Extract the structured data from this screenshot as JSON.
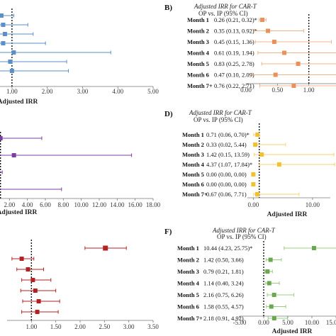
{
  "chart_data": [
    {
      "type": "forest",
      "panel_label": "",
      "header": [],
      "xlabel": "Adjusted IRR",
      "x_ticks": [
        "1.00",
        "2.00",
        "3.00",
        "4.00",
        "5.00"
      ],
      "xlim": [
        0.5,
        5.0
      ],
      "reference_line": 1.0,
      "color": "#5b8fc7",
      "rows": [
        {
          "label": "",
          "value_text": "",
          "est": 0.7,
          "lo": 0.3,
          "hi": 1.05
        },
        {
          "label": "",
          "value_text": "",
          "est": 0.75,
          "lo": 0.4,
          "hi": 1.45
        },
        {
          "label": "",
          "value_text": "",
          "est": 0.8,
          "lo": 0.4,
          "hi": 1.6
        },
        {
          "label": "",
          "value_text": "",
          "est": 0.75,
          "lo": 0.35,
          "hi": 1.95
        },
        {
          "label": "",
          "value_text": "",
          "est": 1.05,
          "lo": 0.45,
          "hi": 3.8
        },
        {
          "label": "",
          "value_text": "",
          "est": 0.95,
          "lo": 0.45,
          "hi": 2.55
        },
        {
          "label": "",
          "value_text": "",
          "est": 1.0,
          "lo": 0.5,
          "hi": 2.6
        }
      ]
    },
    {
      "type": "forest",
      "panel_label": "B)",
      "header": [
        "Adjusted IRR for CAR-T",
        "OP vs. IP (95% CI)"
      ],
      "xlabel": "",
      "x_ticks": [
        "0.00",
        "0.50",
        "1.00",
        "1.5"
      ],
      "xlim": [
        0.0,
        1.5
      ],
      "reference_line": 1.0,
      "color": "#e8915a",
      "rows": [
        {
          "label": "Month 1",
          "value_text": "0.26 (0.21, 0.32)*",
          "est": 0.26,
          "lo": 0.21,
          "hi": 0.32
        },
        {
          "label": "Month 2",
          "value_text": "0.35 (0.13, 0.92)*",
          "est": 0.35,
          "lo": 0.13,
          "hi": 0.92
        },
        {
          "label": "Month 3",
          "value_text": "0.45 (0.15, 1.36)",
          "est": 0.45,
          "lo": 0.15,
          "hi": 1.36
        },
        {
          "label": "Month 4",
          "value_text": "0.61 (0.19, 1.94)",
          "est": 0.61,
          "lo": 0.19,
          "hi": 1.94
        },
        {
          "label": "Month 5",
          "value_text": "0.83 (0.25, 2.78)",
          "est": 0.83,
          "lo": 0.25,
          "hi": 2.78
        },
        {
          "label": "Month 6",
          "value_text": "0.47 (0.10, 2.09)",
          "est": 0.47,
          "lo": 0.1,
          "hi": 2.09
        },
        {
          "label": "Month 7+",
          "value_text": "0.76 (0.22, 2.71)",
          "est": 0.76,
          "lo": 0.22,
          "hi": 2.71
        }
      ]
    },
    {
      "type": "forest",
      "panel_label": "",
      "header": [],
      "xlabel": "Adjusted IRR",
      "x_ticks": [
        "2.00",
        "4.00",
        "6.00",
        "8.00",
        "10.00",
        "12.00",
        "14.00",
        "16.00",
        "18.00"
      ],
      "xlim": [
        0.0,
        18.0
      ],
      "reference_line": 1.0,
      "color": "#7b3fa0",
      "rows": [
        {
          "label": "",
          "value_text": "",
          "est": 1.0,
          "lo": 0.2,
          "hi": 5.6
        },
        {
          "label": "",
          "value_text": "",
          "est": 2.5,
          "lo": 0.2,
          "hi": 15.6
        },
        {
          "label": "",
          "value_text": "",
          "est": 0.3,
          "lo": 0.1,
          "hi": 1.2
        },
        {
          "label": "",
          "value_text": "",
          "est": 0.5,
          "lo": 0.1,
          "hi": 7.8
        }
      ]
    },
    {
      "type": "forest",
      "panel_label": "D)",
      "header": [
        "Adjusted IRR for CAR-T",
        "OP vs. IP (95% CI)"
      ],
      "xlabel": "Adjusted IRR",
      "x_ticks": [
        "0.00",
        "10.00"
      ],
      "xlim": [
        -1.0,
        13.0
      ],
      "reference_line": 1.0,
      "color": "#f2c12e",
      "rows": [
        {
          "label": "Month 1",
          "value_text": "0.71 (0.06, 0.70)*",
          "est": 0.71,
          "lo": 0.06,
          "hi": 0.7
        },
        {
          "label": "Month 2",
          "value_text": "0.33 (0.02, 5.44)",
          "est": 0.33,
          "lo": 0.02,
          "hi": 5.44
        },
        {
          "label": "Month 3",
          "value_text": "1.42 (0.15, 13.59)",
          "est": 1.42,
          "lo": 0.15,
          "hi": 13.59
        },
        {
          "label": "Month 4",
          "value_text": "4.37 (1.07, 17.84)*",
          "est": 4.37,
          "lo": 1.07,
          "hi": 17.84
        },
        {
          "label": "Month 5",
          "value_text": "0.00 (0.00, 0.00)",
          "est": 0.0,
          "lo": 0.0,
          "hi": 0.0
        },
        {
          "label": "Month 6",
          "value_text": "0.00 (0.00, 0.00)",
          "est": 0.0,
          "lo": 0.0,
          "hi": 0.0
        },
        {
          "label": "Month 7+",
          "value_text": "0.67 (0.06, 7.71)",
          "est": 0.67,
          "lo": 0.06,
          "hi": 7.71
        }
      ]
    },
    {
      "type": "forest",
      "panel_label": "",
      "header": [],
      "xlabel": "",
      "x_ticks": [
        "1.00",
        "1.50",
        "2.00",
        "2.50",
        "3.00",
        "3.50"
      ],
      "xlim": [
        0.5,
        3.5
      ],
      "reference_line": 1.0,
      "color": "#b22222",
      "rows": [
        {
          "label": "",
          "value_text": "",
          "est": 2.52,
          "lo": 2.1,
          "hi": 2.95
        },
        {
          "label": "",
          "value_text": "",
          "est": 0.8,
          "lo": 0.6,
          "hi": 1.05
        },
        {
          "label": "",
          "value_text": "",
          "est": 0.93,
          "lo": 0.7,
          "hi": 1.25
        },
        {
          "label": "",
          "value_text": "",
          "est": 1.03,
          "lo": 0.8,
          "hi": 1.4
        },
        {
          "label": "",
          "value_text": "",
          "est": 1.08,
          "lo": 0.78,
          "hi": 1.5
        },
        {
          "label": "",
          "value_text": "",
          "est": 1.15,
          "lo": 0.82,
          "hi": 1.58
        },
        {
          "label": "",
          "value_text": "",
          "est": 1.12,
          "lo": 0.8,
          "hi": 1.55
        }
      ]
    },
    {
      "type": "forest",
      "panel_label": "F)",
      "header": [
        "Adjusted IRR for CAR-T",
        "OP vs. IP (95% CI)"
      ],
      "xlabel": "Adjusted IRR",
      "x_ticks": [
        "-5.00",
        "0.00",
        "5.00",
        "10.00",
        "15.00"
      ],
      "xlim": [
        -5.0,
        15.0
      ],
      "reference_line": 0.0,
      "color": "#6aa84f",
      "rows": [
        {
          "label": "Month 1",
          "value_text": "10.44 (4.23, 25.75)*",
          "est": 10.44,
          "lo": 4.23,
          "hi": 25.75
        },
        {
          "label": "Month 2",
          "value_text": "1.42 (0.50, 3.66)",
          "est": 1.42,
          "lo": 0.5,
          "hi": 3.66
        },
        {
          "label": "Month 3",
          "value_text": "0.79 (0.21, 1.81)",
          "est": 0.79,
          "lo": 0.21,
          "hi": 1.81
        },
        {
          "label": "Month 4",
          "value_text": "1.14 (0.40, 3.24)",
          "est": 1.14,
          "lo": 0.4,
          "hi": 3.24
        },
        {
          "label": "Month 5",
          "value_text": "2.16 (0.75, 6.26)",
          "est": 2.16,
          "lo": 0.75,
          "hi": 6.26
        },
        {
          "label": "Month 6",
          "value_text": "1.58 (0.55, 4.57)",
          "est": 1.58,
          "lo": 0.55,
          "hi": 4.57
        },
        {
          "label": "Month 7+",
          "value_text": "2.18 (0.91, 4.92)",
          "est": 2.18,
          "lo": 0.91,
          "hi": 4.92
        }
      ]
    }
  ]
}
